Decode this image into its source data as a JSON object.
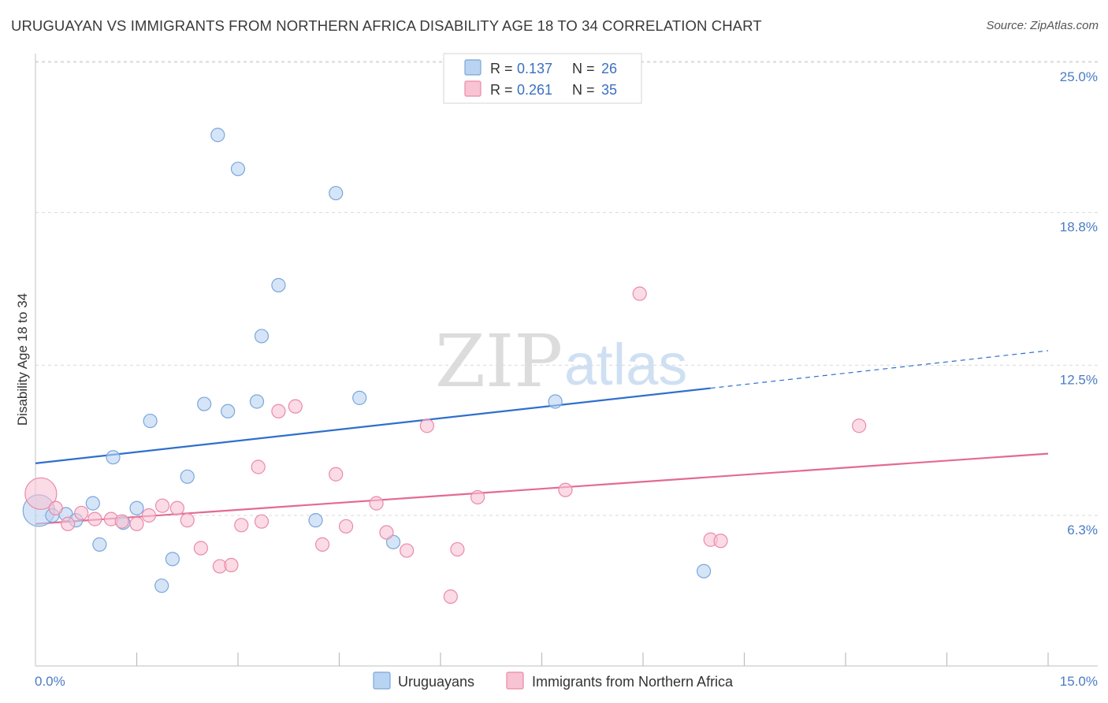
{
  "title": "URUGUAYAN VS IMMIGRANTS FROM NORTHERN AFRICA DISABILITY AGE 18 TO 34 CORRELATION CHART",
  "source": "Source: ZipAtlas.com",
  "watermark": {
    "zip": "ZIP",
    "atlas": "atlas"
  },
  "colors": {
    "blue_fill": "#b9d3f2",
    "blue_stroke": "#7aa6dc",
    "blue_line": "#2f6fcd",
    "pink_fill": "#f8c3d3",
    "pink_stroke": "#ea8aa8",
    "pink_line": "#e36a93",
    "tick_text": "#4a7cc4",
    "grid": "#d9d9d9"
  },
  "legend_top": {
    "rows": [
      {
        "r_label": "R = ",
        "r_value": "0.137",
        "n_label": "N = ",
        "n_value": "26"
      },
      {
        "r_label": "R = ",
        "r_value": "0.261",
        "n_label": "N = ",
        "n_value": "35"
      }
    ]
  },
  "legend_bottom": {
    "items": [
      {
        "label": "Uruguayans"
      },
      {
        "label": "Immigrants from Northern Africa"
      }
    ]
  },
  "chart_data": {
    "type": "scatter",
    "title": "URUGUAYAN VS IMMIGRANTS FROM NORTHERN AFRICA DISABILITY AGE 18 TO 34 CORRELATION CHART",
    "xlabel": "",
    "ylabel": "Disability Age 18 to 34",
    "xlim": [
      0,
      15
    ],
    "ylim": [
      0,
      25.5
    ],
    "x_tick_labels": [
      "0.0%",
      "15.0%"
    ],
    "y_ticks": [
      6.3,
      12.5,
      18.8,
      25.0
    ],
    "y_tick_labels": [
      "6.3%",
      "12.5%",
      "18.8%",
      "25.0%"
    ],
    "grid": true,
    "series": [
      {
        "name": "Uruguayans",
        "r": 0.137,
        "n": 26,
        "trend": {
          "x0": 0,
          "y0": 8.45,
          "x1": 10.0,
          "y1": 11.55,
          "dashed_to_x": 15,
          "dashed_to_y": 13.1
        },
        "points": [
          {
            "x": 0.05,
            "y": 6.5,
            "big": true
          },
          {
            "x": 0.25,
            "y": 6.3
          },
          {
            "x": 0.45,
            "y": 6.35
          },
          {
            "x": 0.6,
            "y": 6.1
          },
          {
            "x": 0.85,
            "y": 6.8
          },
          {
            "x": 0.95,
            "y": 5.1
          },
          {
            "x": 1.15,
            "y": 8.7
          },
          {
            "x": 1.3,
            "y": 6.0
          },
          {
            "x": 1.5,
            "y": 6.6
          },
          {
            "x": 1.7,
            "y": 10.2
          },
          {
            "x": 1.87,
            "y": 3.4
          },
          {
            "x": 2.03,
            "y": 4.5
          },
          {
            "x": 2.25,
            "y": 7.9
          },
          {
            "x": 2.5,
            "y": 10.9
          },
          {
            "x": 2.7,
            "y": 22.0
          },
          {
            "x": 2.85,
            "y": 10.6
          },
          {
            "x": 3.0,
            "y": 20.6
          },
          {
            "x": 3.28,
            "y": 11.0
          },
          {
            "x": 3.35,
            "y": 13.7
          },
          {
            "x": 3.6,
            "y": 15.8
          },
          {
            "x": 4.15,
            "y": 6.1
          },
          {
            "x": 4.45,
            "y": 19.6
          },
          {
            "x": 4.8,
            "y": 11.15
          },
          {
            "x": 5.3,
            "y": 5.2
          },
          {
            "x": 7.7,
            "y": 11.0
          },
          {
            "x": 9.9,
            "y": 4.0
          }
        ]
      },
      {
        "name": "Immigrants from Northern Africa",
        "r": 0.261,
        "n": 35,
        "trend": {
          "x0": 0,
          "y0": 5.95,
          "x1": 15,
          "y1": 8.85
        },
        "points": [
          {
            "x": 0.08,
            "y": 7.2,
            "big": true
          },
          {
            "x": 0.3,
            "y": 6.6
          },
          {
            "x": 0.48,
            "y": 5.95
          },
          {
            "x": 0.68,
            "y": 6.4
          },
          {
            "x": 0.88,
            "y": 6.15
          },
          {
            "x": 1.12,
            "y": 6.15
          },
          {
            "x": 1.28,
            "y": 6.05
          },
          {
            "x": 1.5,
            "y": 5.95
          },
          {
            "x": 1.68,
            "y": 6.3
          },
          {
            "x": 1.88,
            "y": 6.7
          },
          {
            "x": 2.1,
            "y": 6.6
          },
          {
            "x": 2.25,
            "y": 6.1
          },
          {
            "x": 2.45,
            "y": 4.95
          },
          {
            "x": 2.73,
            "y": 4.2
          },
          {
            "x": 2.9,
            "y": 4.25
          },
          {
            "x": 3.05,
            "y": 5.9
          },
          {
            "x": 3.3,
            "y": 8.3
          },
          {
            "x": 3.35,
            "y": 6.05
          },
          {
            "x": 3.6,
            "y": 10.6
          },
          {
            "x": 3.85,
            "y": 10.8
          },
          {
            "x": 4.25,
            "y": 5.1
          },
          {
            "x": 4.45,
            "y": 8.0
          },
          {
            "x": 4.6,
            "y": 5.85
          },
          {
            "x": 5.05,
            "y": 6.8
          },
          {
            "x": 5.2,
            "y": 5.6
          },
          {
            "x": 5.5,
            "y": 4.85
          },
          {
            "x": 5.8,
            "y": 10.0
          },
          {
            "x": 6.15,
            "y": 2.95
          },
          {
            "x": 6.25,
            "y": 4.9
          },
          {
            "x": 6.55,
            "y": 7.05
          },
          {
            "x": 7.85,
            "y": 7.35
          },
          {
            "x": 8.95,
            "y": 15.45
          },
          {
            "x": 10.0,
            "y": 5.3
          },
          {
            "x": 10.15,
            "y": 5.25
          },
          {
            "x": 12.2,
            "y": 10.0
          }
        ]
      }
    ]
  }
}
